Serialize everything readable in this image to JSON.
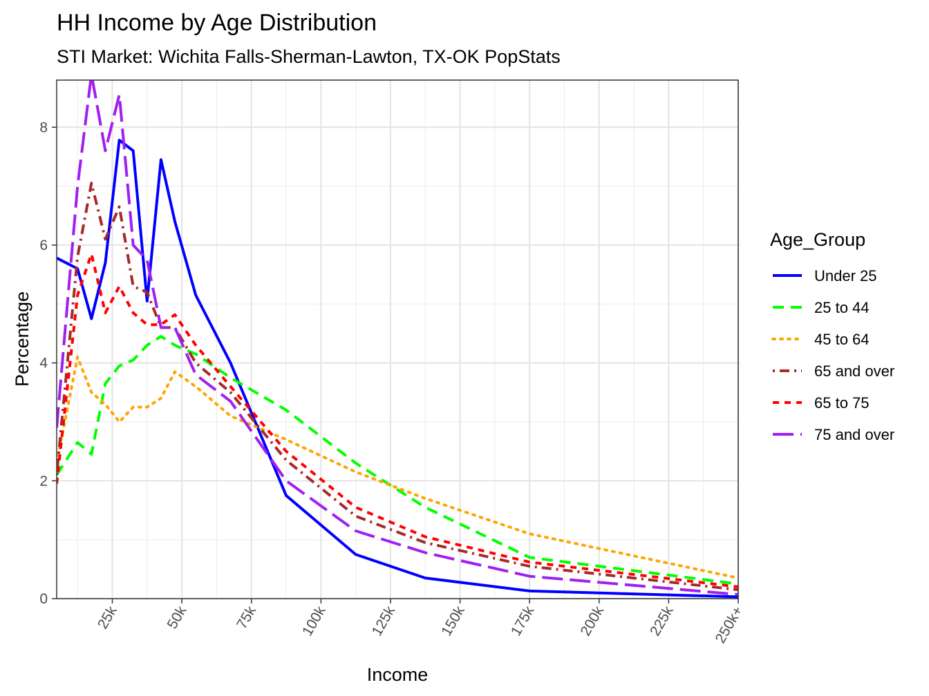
{
  "chart_data": {
    "type": "line",
    "title": "HH Income by Age Distribution",
    "subtitle": "STI Market: Wichita Falls-Sherman-Lawton, TX-OK PopStats",
    "xlabel": "Income",
    "ylabel": "Percentage",
    "xlim": [
      5,
      250
    ],
    "ylim": [
      0,
      8.8
    ],
    "x_ticks": [
      25,
      50,
      75,
      100,
      125,
      150,
      175,
      200,
      225,
      250
    ],
    "x_tick_labels": [
      "25k",
      "50k",
      "75k",
      "100k",
      "125k",
      "150k",
      "175k",
      "200k",
      "225k",
      "250k+"
    ],
    "y_ticks": [
      0,
      2,
      4,
      6,
      8
    ],
    "y_tick_labels": [
      "0",
      "2",
      "4",
      "6",
      "8"
    ],
    "grid": true,
    "legend": {
      "title": "Age_Group",
      "position": "right"
    },
    "series": [
      {
        "name": "Under 25",
        "color": "#0000FF",
        "dash": "solid",
        "x": [
          5,
          12.5,
          17.5,
          22.5,
          27.5,
          32.5,
          37.5,
          42.5,
          47.5,
          55,
          67.5,
          87.5,
          112.5,
          137.5,
          175,
          250
        ],
        "y": [
          5.78,
          5.6,
          4.75,
          5.7,
          7.78,
          7.6,
          5.05,
          7.45,
          6.4,
          5.15,
          4.0,
          1.75,
          0.75,
          0.35,
          0.13,
          0.03
        ]
      },
      {
        "name": "25 to 44",
        "color": "#00FF00",
        "dash": "dashed",
        "x": [
          5,
          12.5,
          17.5,
          22.5,
          27.5,
          32.5,
          37.5,
          42.5,
          47.5,
          55,
          67.5,
          87.5,
          112.5,
          137.5,
          175,
          250
        ],
        "y": [
          2.1,
          2.65,
          2.45,
          3.65,
          3.95,
          4.05,
          4.3,
          4.45,
          4.3,
          4.15,
          3.75,
          3.2,
          2.3,
          1.55,
          0.7,
          0.25
        ]
      },
      {
        "name": "45 to 64",
        "color": "#FFA500",
        "dash": "dotted",
        "x": [
          5,
          12.5,
          17.5,
          22.5,
          27.5,
          32.5,
          37.5,
          42.5,
          47.5,
          55,
          67.5,
          87.5,
          112.5,
          137.5,
          175,
          250
        ],
        "y": [
          2.3,
          4.1,
          3.5,
          3.3,
          3.0,
          3.25,
          3.25,
          3.4,
          3.85,
          3.6,
          3.1,
          2.7,
          2.15,
          1.7,
          1.1,
          0.35
        ]
      },
      {
        "name": "65 and over",
        "color": "#A52A2A",
        "dash": "dashdot",
        "x": [
          5,
          12.5,
          17.5,
          22.5,
          27.5,
          32.5,
          37.5,
          42.5,
          47.5,
          55,
          67.5,
          87.5,
          112.5,
          137.5,
          175,
          250
        ],
        "y": [
          2.1,
          5.8,
          7.05,
          6.1,
          6.65,
          5.3,
          5.2,
          4.6,
          4.6,
          4.0,
          3.5,
          2.35,
          1.4,
          0.95,
          0.55,
          0.15
        ]
      },
      {
        "name": "65 to 75",
        "color": "#FF0000",
        "dash": "shortdash",
        "x": [
          5,
          12.5,
          17.5,
          22.5,
          27.5,
          32.5,
          37.5,
          42.5,
          47.5,
          55,
          67.5,
          87.5,
          112.5,
          137.5,
          175,
          250
        ],
        "y": [
          1.95,
          5.15,
          5.85,
          4.85,
          5.3,
          4.85,
          4.65,
          4.65,
          4.82,
          4.3,
          3.6,
          2.5,
          1.55,
          1.05,
          0.62,
          0.2
        ]
      },
      {
        "name": "75 and over",
        "color": "#A020F0",
        "dash": "longdash",
        "x": [
          5,
          12.5,
          17.5,
          22.5,
          27.5,
          32.5,
          37.5,
          42.5,
          47.5,
          55,
          67.5,
          87.5,
          112.5,
          137.5,
          175,
          250
        ],
        "y": [
          2.9,
          7.0,
          8.9,
          7.6,
          8.55,
          6.0,
          5.75,
          4.6,
          4.6,
          3.8,
          3.35,
          2.0,
          1.15,
          0.78,
          0.38,
          0.07
        ]
      }
    ]
  }
}
